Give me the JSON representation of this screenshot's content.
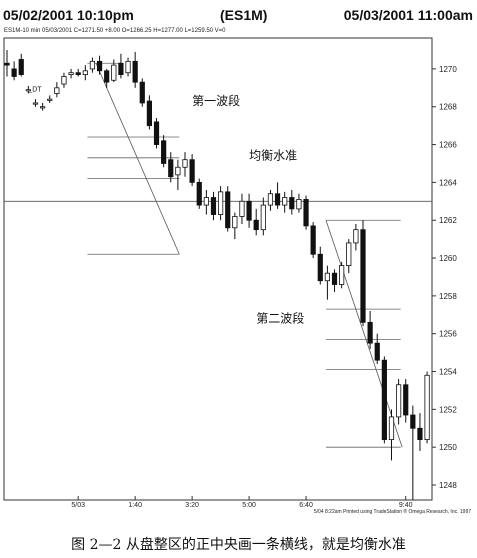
{
  "header": {
    "left": "05/02/2001 10:10pm",
    "center": "(ES1M)",
    "right": "05/03/2001 11:00am"
  },
  "info_line": "ES1M-10 min  05/03/2001  C=1271.50  +8.00  O=1266.25  H=1277.00  L=1259.50  V=0",
  "footer": "5/04  8:22am  Printed using TradeStation ® Omega Research, Inc. 1997",
  "caption": "图 2—2 从盘整区的正中央画一条横线，就是均衡水准",
  "chart_data": {
    "type": "candlestick",
    "symbol": "ES1M",
    "ylim": [
      1247,
      1272
    ],
    "y_ticks": [
      1270,
      1268,
      1266,
      1264,
      1262,
      1260,
      1258,
      1256,
      1254,
      1252,
      1250,
      1248
    ],
    "y_tick_labels": [
      "1270",
      "1268",
      "1266",
      "1264",
      "1262",
      "1260",
      "1258",
      "1256",
      "1254",
      "1252",
      "1250",
      "1248"
    ],
    "x_tick_labels": [
      "5/03",
      "1:40",
      "3:20",
      "5:00",
      "6:40",
      "9:40"
    ],
    "annotations": [
      {
        "text": "第一波段",
        "x_index": 26,
        "y": 1268.1
      },
      {
        "text": "均衡水准",
        "x_index": 34,
        "y": 1265.2
      },
      {
        "text": "第二波段",
        "x_index": 35,
        "y": 1256.6
      },
      {
        "text": "_DT",
        "x_index": 3,
        "y": 1268.8
      }
    ],
    "equilibrium_level": 1263.0,
    "wave_lines": [
      {
        "name": "wave-1",
        "levels": [
          1270.3,
          1266.4,
          1265.3,
          1264.2,
          1260.2
        ]
      },
      {
        "name": "wave-2",
        "levels": [
          1262.0,
          1257.3,
          1255.7,
          1254.1,
          1250.0
        ]
      }
    ],
    "candles": [
      {
        "o": 1270.3,
        "h": 1271.0,
        "l": 1269.6,
        "c": 1270.2
      },
      {
        "o": 1270.0,
        "h": 1270.4,
        "l": 1269.4,
        "c": 1269.6
      },
      {
        "o": 1270.5,
        "h": 1270.8,
        "l": 1269.6,
        "c": 1269.7
      },
      {
        "o": 1268.9,
        "h": 1269.1,
        "l": 1268.7,
        "c": 1268.9
      },
      {
        "o": 1268.2,
        "h": 1268.4,
        "l": 1268.0,
        "c": 1268.2
      },
      {
        "o": 1268.0,
        "h": 1268.2,
        "l": 1267.8,
        "c": 1268.0
      },
      {
        "o": 1268.4,
        "h": 1268.6,
        "l": 1268.2,
        "c": 1268.4
      },
      {
        "o": 1268.7,
        "h": 1269.3,
        "l": 1268.5,
        "c": 1269.0
      },
      {
        "o": 1269.2,
        "h": 1269.8,
        "l": 1269.0,
        "c": 1269.6
      },
      {
        "o": 1269.7,
        "h": 1270.0,
        "l": 1269.5,
        "c": 1269.8
      },
      {
        "o": 1269.8,
        "h": 1270.0,
        "l": 1269.6,
        "c": 1269.7
      },
      {
        "o": 1269.7,
        "h": 1270.2,
        "l": 1269.4,
        "c": 1269.9
      },
      {
        "o": 1270.0,
        "h": 1270.6,
        "l": 1269.8,
        "c": 1270.4
      },
      {
        "o": 1270.4,
        "h": 1270.7,
        "l": 1269.7,
        "c": 1269.9
      },
      {
        "o": 1269.9,
        "h": 1270.0,
        "l": 1269.0,
        "c": 1269.3
      },
      {
        "o": 1269.4,
        "h": 1270.5,
        "l": 1269.3,
        "c": 1270.2
      },
      {
        "o": 1270.3,
        "h": 1270.8,
        "l": 1269.5,
        "c": 1269.7
      },
      {
        "o": 1269.8,
        "h": 1270.6,
        "l": 1269.6,
        "c": 1270.4
      },
      {
        "o": 1270.4,
        "h": 1270.9,
        "l": 1269.0,
        "c": 1269.3
      },
      {
        "o": 1269.3,
        "h": 1269.5,
        "l": 1268.0,
        "c": 1268.2
      },
      {
        "o": 1268.3,
        "h": 1268.6,
        "l": 1266.8,
        "c": 1267.0
      },
      {
        "o": 1267.2,
        "h": 1267.4,
        "l": 1265.8,
        "c": 1266.0
      },
      {
        "o": 1266.2,
        "h": 1266.5,
        "l": 1264.8,
        "c": 1265.0
      },
      {
        "o": 1265.2,
        "h": 1265.6,
        "l": 1264.0,
        "c": 1264.3
      },
      {
        "o": 1264.4,
        "h": 1265.2,
        "l": 1263.6,
        "c": 1264.8
      },
      {
        "o": 1264.8,
        "h": 1265.6,
        "l": 1264.3,
        "c": 1265.2
      },
      {
        "o": 1265.2,
        "h": 1265.5,
        "l": 1263.8,
        "c": 1264.0
      },
      {
        "o": 1264.0,
        "h": 1264.2,
        "l": 1262.6,
        "c": 1262.8
      },
      {
        "o": 1262.8,
        "h": 1263.6,
        "l": 1262.3,
        "c": 1263.2
      },
      {
        "o": 1263.2,
        "h": 1263.5,
        "l": 1262.0,
        "c": 1262.3
      },
      {
        "o": 1262.3,
        "h": 1263.8,
        "l": 1262.0,
        "c": 1263.5
      },
      {
        "o": 1263.5,
        "h": 1263.8,
        "l": 1261.4,
        "c": 1261.6
      },
      {
        "o": 1261.6,
        "h": 1262.4,
        "l": 1261.0,
        "c": 1262.2
      },
      {
        "o": 1262.2,
        "h": 1263.4,
        "l": 1261.8,
        "c": 1263.0
      },
      {
        "o": 1263.0,
        "h": 1263.4,
        "l": 1261.6,
        "c": 1262.0
      },
      {
        "o": 1262.0,
        "h": 1262.6,
        "l": 1261.2,
        "c": 1261.5
      },
      {
        "o": 1261.5,
        "h": 1263.2,
        "l": 1261.2,
        "c": 1262.8
      },
      {
        "o": 1262.8,
        "h": 1263.6,
        "l": 1262.5,
        "c": 1263.4
      },
      {
        "o": 1263.4,
        "h": 1264.0,
        "l": 1262.6,
        "c": 1262.8
      },
      {
        "o": 1262.8,
        "h": 1263.5,
        "l": 1262.4,
        "c": 1263.2
      },
      {
        "o": 1263.2,
        "h": 1263.6,
        "l": 1262.3,
        "c": 1262.6
      },
      {
        "o": 1262.6,
        "h": 1263.4,
        "l": 1262.4,
        "c": 1263.1
      },
      {
        "o": 1263.1,
        "h": 1263.3,
        "l": 1261.5,
        "c": 1261.7
      },
      {
        "o": 1261.7,
        "h": 1261.9,
        "l": 1260.0,
        "c": 1260.2
      },
      {
        "o": 1260.2,
        "h": 1260.6,
        "l": 1258.6,
        "c": 1258.8
      },
      {
        "o": 1258.8,
        "h": 1259.6,
        "l": 1257.8,
        "c": 1259.2
      },
      {
        "o": 1259.2,
        "h": 1259.4,
        "l": 1258.2,
        "c": 1258.6
      },
      {
        "o": 1258.6,
        "h": 1259.8,
        "l": 1258.4,
        "c": 1259.6
      },
      {
        "o": 1259.6,
        "h": 1261.0,
        "l": 1259.2,
        "c": 1260.8
      },
      {
        "o": 1260.8,
        "h": 1261.8,
        "l": 1260.4,
        "c": 1261.5
      },
      {
        "o": 1261.5,
        "h": 1262.0,
        "l": 1256.4,
        "c": 1256.6
      },
      {
        "o": 1256.6,
        "h": 1257.2,
        "l": 1255.2,
        "c": 1255.5
      },
      {
        "o": 1255.5,
        "h": 1256.0,
        "l": 1254.4,
        "c": 1254.6
      },
      {
        "o": 1254.6,
        "h": 1254.8,
        "l": 1250.2,
        "c": 1250.4
      },
      {
        "o": 1250.4,
        "h": 1252.0,
        "l": 1249.3,
        "c": 1251.6
      },
      {
        "o": 1251.6,
        "h": 1253.6,
        "l": 1251.2,
        "c": 1253.3
      },
      {
        "o": 1253.3,
        "h": 1253.6,
        "l": 1251.3,
        "c": 1251.7
      },
      {
        "o": 1251.7,
        "h": 1252.2,
        "l": 1247.2,
        "c": 1251.0
      },
      {
        "o": 1251.0,
        "h": 1251.8,
        "l": 1249.8,
        "c": 1250.4
      },
      {
        "o": 1250.4,
        "h": 1254.0,
        "l": 1250.2,
        "c": 1253.8
      }
    ]
  }
}
